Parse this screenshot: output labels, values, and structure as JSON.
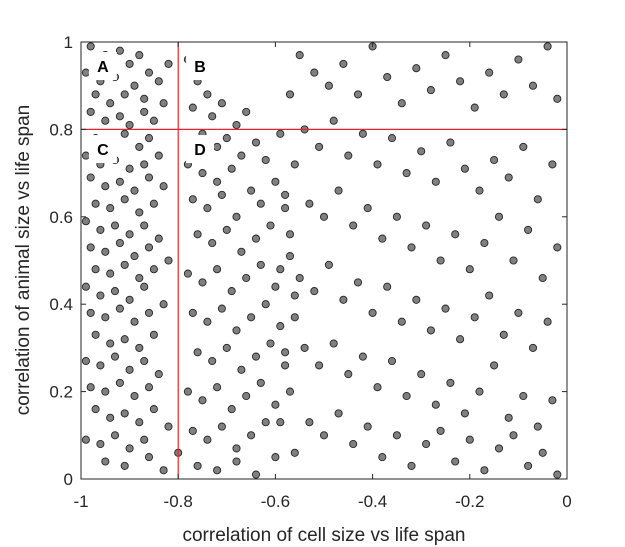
{
  "chart_data": {
    "type": "scatter",
    "title": "",
    "xlabel": "correlation of cell size vs life span",
    "ylabel": "correlation of animal size vs life span",
    "xlim": [
      -1,
      0
    ],
    "ylim": [
      0,
      1
    ],
    "xticks": [
      -1,
      -0.8,
      -0.6,
      -0.4,
      -0.2,
      0
    ],
    "xtick_labels": [
      "-1",
      "-0.8",
      "-0.6",
      "-0.4",
      "-0.2",
      "0"
    ],
    "yticks": [
      0,
      0.2,
      0.4,
      0.6,
      0.8,
      1
    ],
    "ytick_labels": [
      "0",
      "0.2",
      "0.4",
      "0.6",
      "0.8",
      "1"
    ],
    "grid": false,
    "marker": {
      "face_color": "#808080",
      "edge_color": "#262626",
      "shape": "circle"
    },
    "threshold_lines": {
      "x": -0.8,
      "y": 0.8,
      "color": "#e8232a"
    },
    "quadrant_labels": [
      {
        "text": "A",
        "x": -0.955,
        "y": 0.945
      },
      {
        "text": "B",
        "x": -0.755,
        "y": 0.945
      },
      {
        "text": "C",
        "x": -0.955,
        "y": 0.755
      },
      {
        "text": "D",
        "x": -0.755,
        "y": 0.755
      }
    ],
    "points": [
      [
        -0.98,
        0.99
      ],
      [
        -0.95,
        0.97
      ],
      [
        -0.92,
        0.98
      ],
      [
        -0.99,
        0.93
      ],
      [
        -0.96,
        0.91
      ],
      [
        -0.93,
        0.92
      ],
      [
        -0.9,
        0.95
      ],
      [
        -0.88,
        0.97
      ],
      [
        -0.86,
        0.93
      ],
      [
        -0.97,
        0.88
      ],
      [
        -0.94,
        0.86
      ],
      [
        -0.91,
        0.88
      ],
      [
        -0.89,
        0.9
      ],
      [
        -0.87,
        0.87
      ],
      [
        -0.84,
        0.91
      ],
      [
        -0.82,
        0.95
      ],
      [
        -0.98,
        0.84
      ],
      [
        -0.95,
        0.82
      ],
      [
        -0.92,
        0.83
      ],
      [
        -0.9,
        0.81
      ],
      [
        -0.87,
        0.84
      ],
      [
        -0.85,
        0.82
      ],
      [
        -0.83,
        0.86
      ],
      [
        -0.97,
        0.78
      ],
      [
        -0.94,
        0.77
      ],
      [
        -0.91,
        0.79
      ],
      [
        -0.88,
        0.76
      ],
      [
        -0.86,
        0.78
      ],
      [
        -0.99,
        0.74
      ],
      [
        -0.96,
        0.72
      ],
      [
        -0.93,
        0.73
      ],
      [
        -0.9,
        0.71
      ],
      [
        -0.87,
        0.72
      ],
      [
        -0.84,
        0.74
      ],
      [
        -0.98,
        0.69
      ],
      [
        -0.95,
        0.67
      ],
      [
        -0.92,
        0.68
      ],
      [
        -0.89,
        0.66
      ],
      [
        -0.86,
        0.69
      ],
      [
        -0.83,
        0.67
      ],
      [
        -0.97,
        0.63
      ],
      [
        -0.94,
        0.62
      ],
      [
        -0.91,
        0.64
      ],
      [
        -0.88,
        0.61
      ],
      [
        -0.85,
        0.63
      ],
      [
        -0.99,
        0.59
      ],
      [
        -0.96,
        0.57
      ],
      [
        -0.93,
        0.58
      ],
      [
        -0.9,
        0.56
      ],
      [
        -0.87,
        0.58
      ],
      [
        -0.84,
        0.55
      ],
      [
        -0.98,
        0.53
      ],
      [
        -0.95,
        0.52
      ],
      [
        -0.92,
        0.54
      ],
      [
        -0.89,
        0.51
      ],
      [
        -0.86,
        0.53
      ],
      [
        -0.97,
        0.48
      ],
      [
        -0.94,
        0.47
      ],
      [
        -0.91,
        0.49
      ],
      [
        -0.88,
        0.46
      ],
      [
        -0.85,
        0.48
      ],
      [
        -0.82,
        0.5
      ],
      [
        -0.99,
        0.44
      ],
      [
        -0.96,
        0.42
      ],
      [
        -0.93,
        0.43
      ],
      [
        -0.9,
        0.41
      ],
      [
        -0.87,
        0.44
      ],
      [
        -0.98,
        0.38
      ],
      [
        -0.95,
        0.37
      ],
      [
        -0.92,
        0.39
      ],
      [
        -0.89,
        0.36
      ],
      [
        -0.86,
        0.38
      ],
      [
        -0.83,
        0.4
      ],
      [
        -0.97,
        0.33
      ],
      [
        -0.94,
        0.31
      ],
      [
        -0.91,
        0.32
      ],
      [
        -0.88,
        0.3
      ],
      [
        -0.85,
        0.33
      ],
      [
        -0.99,
        0.27
      ],
      [
        -0.96,
        0.26
      ],
      [
        -0.93,
        0.28
      ],
      [
        -0.9,
        0.25
      ],
      [
        -0.87,
        0.27
      ],
      [
        -0.84,
        0.24
      ],
      [
        -0.98,
        0.21
      ],
      [
        -0.95,
        0.2
      ],
      [
        -0.92,
        0.22
      ],
      [
        -0.89,
        0.19
      ],
      [
        -0.86,
        0.21
      ],
      [
        -0.97,
        0.16
      ],
      [
        -0.94,
        0.14
      ],
      [
        -0.91,
        0.15
      ],
      [
        -0.88,
        0.13
      ],
      [
        -0.85,
        0.16
      ],
      [
        -0.82,
        0.12
      ],
      [
        -0.99,
        0.09
      ],
      [
        -0.96,
        0.08
      ],
      [
        -0.93,
        0.1
      ],
      [
        -0.9,
        0.07
      ],
      [
        -0.87,
        0.09
      ],
      [
        -0.95,
        0.04
      ],
      [
        -0.91,
        0.03
      ],
      [
        -0.86,
        0.05
      ],
      [
        -0.83,
        0.02
      ],
      [
        -0.8,
        0.06
      ],
      [
        -0.78,
        0.96
      ],
      [
        -0.76,
        0.91
      ],
      [
        -0.74,
        0.88
      ],
      [
        -0.77,
        0.85
      ],
      [
        -0.73,
        0.83
      ],
      [
        -0.71,
        0.86
      ],
      [
        -0.75,
        0.79
      ],
      [
        -0.72,
        0.76
      ],
      [
        -0.7,
        0.78
      ],
      [
        -0.68,
        0.81
      ],
      [
        -0.66,
        0.84
      ],
      [
        -0.78,
        0.72
      ],
      [
        -0.75,
        0.7
      ],
      [
        -0.72,
        0.68
      ],
      [
        -0.69,
        0.71
      ],
      [
        -0.67,
        0.74
      ],
      [
        -0.64,
        0.77
      ],
      [
        -0.62,
        0.73
      ],
      [
        -0.77,
        0.64
      ],
      [
        -0.74,
        0.62
      ],
      [
        -0.71,
        0.65
      ],
      [
        -0.68,
        0.6
      ],
      [
        -0.65,
        0.66
      ],
      [
        -0.63,
        0.63
      ],
      [
        -0.6,
        0.68
      ],
      [
        -0.76,
        0.56
      ],
      [
        -0.73,
        0.54
      ],
      [
        -0.7,
        0.57
      ],
      [
        -0.67,
        0.52
      ],
      [
        -0.64,
        0.55
      ],
      [
        -0.61,
        0.58
      ],
      [
        -0.58,
        0.62
      ],
      [
        -0.78,
        0.47
      ],
      [
        -0.75,
        0.45
      ],
      [
        -0.72,
        0.48
      ],
      [
        -0.69,
        0.43
      ],
      [
        -0.66,
        0.46
      ],
      [
        -0.63,
        0.49
      ],
      [
        -0.6,
        0.44
      ],
      [
        -0.57,
        0.51
      ],
      [
        -0.77,
        0.38
      ],
      [
        -0.74,
        0.36
      ],
      [
        -0.71,
        0.39
      ],
      [
        -0.68,
        0.34
      ],
      [
        -0.65,
        0.37
      ],
      [
        -0.62,
        0.4
      ],
      [
        -0.59,
        0.35
      ],
      [
        -0.56,
        0.42
      ],
      [
        -0.76,
        0.29
      ],
      [
        -0.73,
        0.27
      ],
      [
        -0.7,
        0.3
      ],
      [
        -0.67,
        0.25
      ],
      [
        -0.64,
        0.28
      ],
      [
        -0.61,
        0.31
      ],
      [
        -0.58,
        0.26
      ],
      [
        -0.78,
        0.2
      ],
      [
        -0.75,
        0.18
      ],
      [
        -0.72,
        0.21
      ],
      [
        -0.69,
        0.16
      ],
      [
        -0.66,
        0.19
      ],
      [
        -0.63,
        0.22
      ],
      [
        -0.6,
        0.17
      ],
      [
        -0.77,
        0.11
      ],
      [
        -0.74,
        0.09
      ],
      [
        -0.71,
        0.12
      ],
      [
        -0.68,
        0.07
      ],
      [
        -0.65,
        0.1
      ],
      [
        -0.62,
        0.13
      ],
      [
        -0.76,
        0.03
      ],
      [
        -0.72,
        0.02
      ],
      [
        -0.68,
        0.04
      ],
      [
        -0.64,
        0.01
      ],
      [
        -0.6,
        0.05
      ],
      [
        -0.55,
        0.97
      ],
      [
        -0.52,
        0.93
      ],
      [
        -0.49,
        0.9
      ],
      [
        -0.46,
        0.95
      ],
      [
        -0.43,
        0.88
      ],
      [
        -0.4,
        0.99
      ],
      [
        -0.37,
        0.92
      ],
      [
        -0.34,
        0.86
      ],
      [
        -0.31,
        0.94
      ],
      [
        -0.28,
        0.89
      ],
      [
        -0.25,
        0.97
      ],
      [
        -0.22,
        0.91
      ],
      [
        -0.19,
        0.85
      ],
      [
        -0.16,
        0.93
      ],
      [
        -0.13,
        0.88
      ],
      [
        -0.1,
        0.96
      ],
      [
        -0.07,
        0.9
      ],
      [
        -0.04,
        0.99
      ],
      [
        -0.02,
        0.87
      ],
      [
        -0.54,
        0.8
      ],
      [
        -0.51,
        0.76
      ],
      [
        -0.48,
        0.82
      ],
      [
        -0.45,
        0.74
      ],
      [
        -0.42,
        0.79
      ],
      [
        -0.39,
        0.72
      ],
      [
        -0.36,
        0.78
      ],
      [
        -0.33,
        0.7
      ],
      [
        -0.3,
        0.75
      ],
      [
        -0.27,
        0.68
      ],
      [
        -0.24,
        0.77
      ],
      [
        -0.21,
        0.71
      ],
      [
        -0.18,
        0.66
      ],
      [
        -0.15,
        0.73
      ],
      [
        -0.12,
        0.69
      ],
      [
        -0.09,
        0.76
      ],
      [
        -0.06,
        0.64
      ],
      [
        -0.03,
        0.72
      ],
      [
        -0.53,
        0.63
      ],
      [
        -0.5,
        0.6
      ],
      [
        -0.47,
        0.66
      ],
      [
        -0.44,
        0.58
      ],
      [
        -0.41,
        0.62
      ],
      [
        -0.38,
        0.55
      ],
      [
        -0.35,
        0.6
      ],
      [
        -0.32,
        0.53
      ],
      [
        -0.29,
        0.58
      ],
      [
        -0.26,
        0.5
      ],
      [
        -0.23,
        0.56
      ],
      [
        -0.2,
        0.48
      ],
      [
        -0.17,
        0.54
      ],
      [
        -0.14,
        0.6
      ],
      [
        -0.11,
        0.5
      ],
      [
        -0.08,
        0.57
      ],
      [
        -0.05,
        0.46
      ],
      [
        -0.02,
        0.53
      ],
      [
        -0.55,
        0.46
      ],
      [
        -0.52,
        0.43
      ],
      [
        -0.49,
        0.49
      ],
      [
        -0.46,
        0.41
      ],
      [
        -0.43,
        0.45
      ],
      [
        -0.4,
        0.38
      ],
      [
        -0.37,
        0.44
      ],
      [
        -0.34,
        0.36
      ],
      [
        -0.31,
        0.41
      ],
      [
        -0.28,
        0.34
      ],
      [
        -0.25,
        0.39
      ],
      [
        -0.22,
        0.32
      ],
      [
        -0.19,
        0.37
      ],
      [
        -0.16,
        0.42
      ],
      [
        -0.13,
        0.33
      ],
      [
        -0.1,
        0.38
      ],
      [
        -0.07,
        0.3
      ],
      [
        -0.04,
        0.36
      ],
      [
        -0.54,
        0.3
      ],
      [
        -0.51,
        0.26
      ],
      [
        -0.48,
        0.31
      ],
      [
        -0.45,
        0.24
      ],
      [
        -0.42,
        0.28
      ],
      [
        -0.39,
        0.21
      ],
      [
        -0.36,
        0.27
      ],
      [
        -0.33,
        0.19
      ],
      [
        -0.3,
        0.24
      ],
      [
        -0.27,
        0.17
      ],
      [
        -0.24,
        0.22
      ],
      [
        -0.21,
        0.15
      ],
      [
        -0.18,
        0.2
      ],
      [
        -0.15,
        0.26
      ],
      [
        -0.12,
        0.14
      ],
      [
        -0.09,
        0.19
      ],
      [
        -0.06,
        0.12
      ],
      [
        -0.03,
        0.18
      ],
      [
        -0.53,
        0.13
      ],
      [
        -0.5,
        0.1
      ],
      [
        -0.47,
        0.15
      ],
      [
        -0.44,
        0.08
      ],
      [
        -0.41,
        0.12
      ],
      [
        -0.38,
        0.05
      ],
      [
        -0.35,
        0.1
      ],
      [
        -0.32,
        0.03
      ],
      [
        -0.29,
        0.08
      ],
      [
        -0.26,
        0.11
      ],
      [
        -0.23,
        0.04
      ],
      [
        -0.2,
        0.09
      ],
      [
        -0.17,
        0.02
      ],
      [
        -0.14,
        0.07
      ],
      [
        -0.11,
        0.1
      ],
      [
        -0.08,
        0.03
      ],
      [
        -0.05,
        0.06
      ],
      [
        -0.02,
        0.01
      ],
      [
        -0.57,
        0.88
      ],
      [
        -0.59,
        0.79
      ],
      [
        -0.56,
        0.72
      ],
      [
        -0.58,
        0.65
      ],
      [
        -0.57,
        0.56
      ],
      [
        -0.59,
        0.48
      ],
      [
        -0.56,
        0.37
      ],
      [
        -0.58,
        0.29
      ],
      [
        -0.57,
        0.2
      ],
      [
        -0.59,
        0.13
      ],
      [
        -0.56,
        0.06
      ]
    ]
  }
}
